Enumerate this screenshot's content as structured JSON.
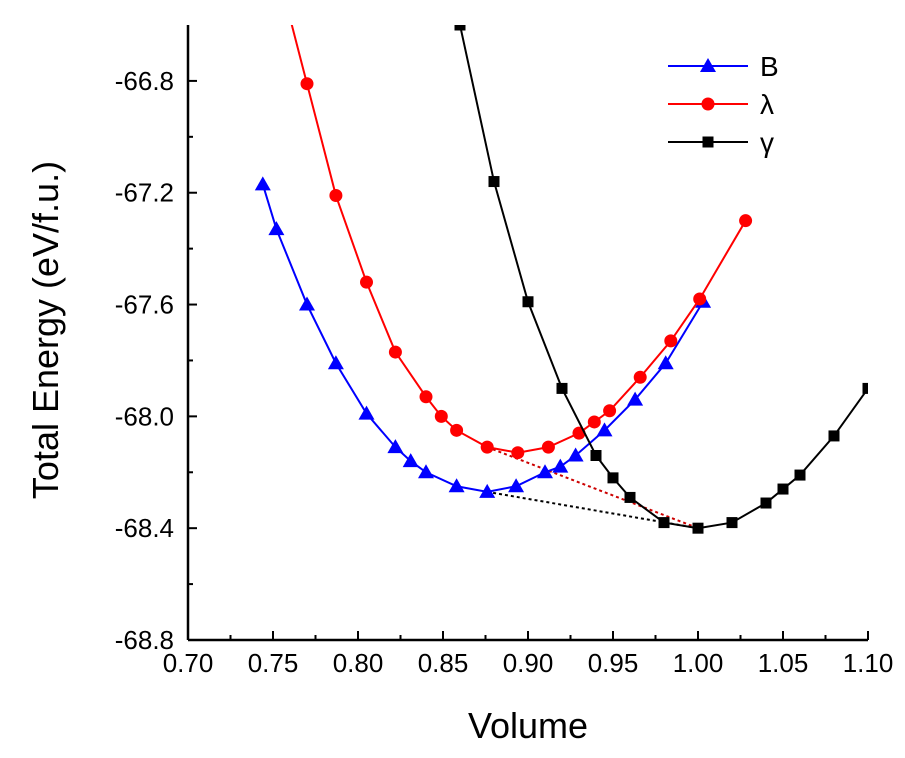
{
  "chart_data": {
    "type": "line",
    "title": "",
    "xlabel": "Volume",
    "ylabel": "Total Energy (eV/f.u.)",
    "xlim": [
      0.7,
      1.1
    ],
    "ylim": [
      -68.8,
      -66.6
    ],
    "xticks": [
      "0.70",
      "0.75",
      "0.80",
      "0.85",
      "0.90",
      "0.95",
      "1.00",
      "1.05",
      "1.10"
    ],
    "yticks": [
      "-66.8",
      "-67.2",
      "-67.6",
      "-68.0",
      "-68.4",
      "-68.8"
    ],
    "grid": false,
    "legend_position": "top-right",
    "series": [
      {
        "name": "B",
        "color": "#0000ff",
        "marker": "triangle",
        "x": [
          0.744,
          0.752,
          0.77,
          0.787,
          0.805,
          0.822,
          0.831,
          0.84,
          0.858,
          0.876,
          0.893,
          0.91,
          0.919,
          0.928,
          0.945,
          0.963,
          0.981,
          1.003
        ],
        "y": [
          -67.17,
          -67.33,
          -67.6,
          -67.81,
          -67.99,
          -68.11,
          -68.16,
          -68.2,
          -68.25,
          -68.27,
          -68.25,
          -68.2,
          -68.18,
          -68.14,
          -68.05,
          -67.94,
          -67.81,
          -67.59
        ]
      },
      {
        "name": "λ",
        "color": "#ff0000",
        "marker": "circle",
        "x": [
          0.77,
          0.787,
          0.805,
          0.822,
          0.84,
          0.849,
          0.858,
          0.876,
          0.894,
          0.912,
          0.93,
          0.939,
          0.948,
          0.966,
          0.984,
          1.001,
          1.028
        ],
        "y": [
          -66.81,
          -67.21,
          -67.52,
          -67.77,
          -67.93,
          -68.0,
          -68.05,
          -68.11,
          -68.13,
          -68.11,
          -68.06,
          -68.02,
          -67.98,
          -67.86,
          -67.73,
          -67.58,
          -67.3
        ]
      },
      {
        "name": "γ",
        "color": "#000000",
        "marker": "square",
        "x": [
          0.86,
          0.88,
          0.9,
          0.92,
          0.94,
          0.95,
          0.96,
          0.98,
          1.0,
          1.02,
          1.04,
          1.05,
          1.06,
          1.08,
          1.1
        ],
        "y": [
          -66.6,
          -67.16,
          -67.59,
          -67.9,
          -68.14,
          -68.22,
          -68.29,
          -68.38,
          -68.4,
          -68.38,
          -68.31,
          -68.26,
          -68.21,
          -68.07,
          -67.9
        ]
      }
    ],
    "tangent_lines": [
      {
        "color": "#cc0000",
        "x": [
          0.876,
          1.0
        ],
        "y": [
          -68.11,
          -68.4
        ]
      },
      {
        "color": "#000000",
        "x": [
          0.876,
          1.0
        ],
        "y": [
          -68.27,
          -68.4
        ]
      }
    ]
  }
}
